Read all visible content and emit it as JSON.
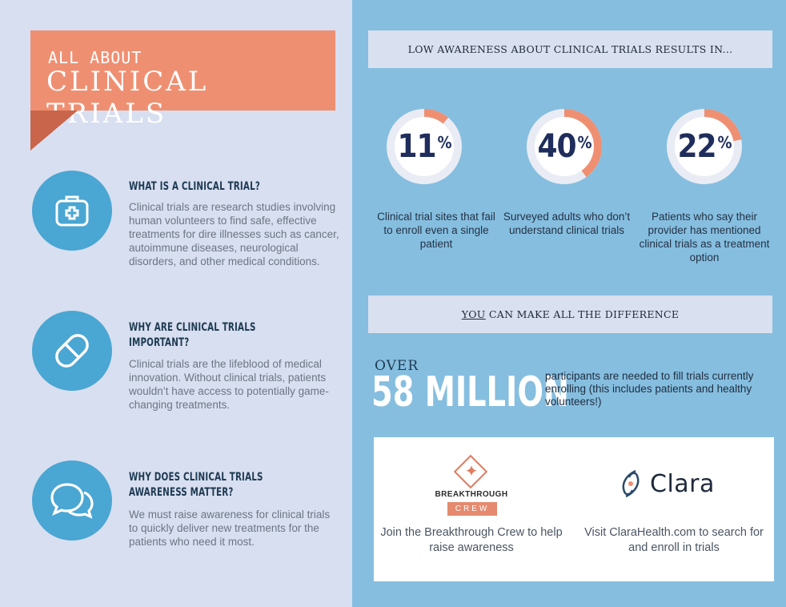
{
  "banner": {
    "subtitle": "ALL ABOUT",
    "title": "CLINICAL TRIALS"
  },
  "sections": [
    {
      "icon": "medical-kit-icon",
      "heading": "What is a clinical trial?",
      "body": "Clinical trials are research studies involving human volunteers to find safe, effective treatments for dire illnesses such as cancer, autoimmune diseases, neurological disorders, and other medical conditions."
    },
    {
      "icon": "pill-icon",
      "heading": "Why are clinical trials important?",
      "body": "Clinical trials are the lifeblood of medical innovation. Without clinical trials, patients wouldn’t have access to potentially game-changing treatments."
    },
    {
      "icon": "chat-bubbles-icon",
      "heading": "Why does clinical trials awareness matter?",
      "body": "We must raise awareness for clinical trials to quickly deliver new treatments for the patients who need it most."
    }
  ],
  "awareness_header": "LOW AWARENESS ABOUT CLINICAL TRIALS RESULTS IN...",
  "stats": [
    {
      "value": "11",
      "unit": "%",
      "fraction": 0.11,
      "caption": "Clinical trial sites that fail to enroll even a single patient"
    },
    {
      "value": "40",
      "unit": "%",
      "fraction": 0.4,
      "caption": "Surveyed adults who don’t understand clinical trials"
    },
    {
      "value": "22",
      "unit": "%",
      "fraction": 0.22,
      "caption": "Patients who say their provider has mentioned clinical trials as a treatment option"
    }
  ],
  "difference_header": {
    "emphasis": "YOU",
    "rest": " CAN MAKE ALL THE DIFFERENCE"
  },
  "participants": {
    "over": "OVER",
    "number": "58 MILLION",
    "description": "participants are needed to fill trials currently enrolling (this includes patients and healthy volunteers!)"
  },
  "partners": {
    "breakthrough": {
      "name": "BREAKTHROUGH",
      "crew": "CREW",
      "caption": "Join the Breakthrough Crew to help raise awareness"
    },
    "clara": {
      "name": "Clara",
      "caption": "Visit ClaraHealth.com to search for and enroll in trials"
    }
  },
  "colors": {
    "accent": "#ef8f72",
    "blue": "#4aa6d2",
    "right_bg": "#86bedf",
    "navy": "#1f2d5c"
  }
}
